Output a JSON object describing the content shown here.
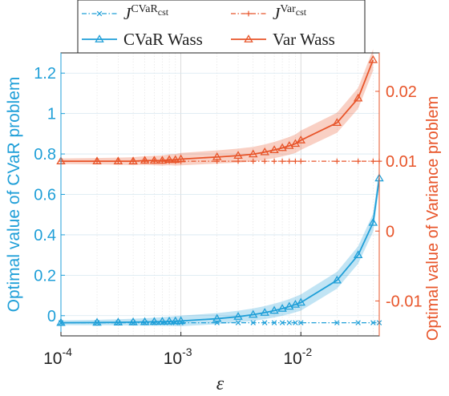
{
  "chart_data": {
    "type": "line",
    "xlabel": "ε",
    "x_scale": "log",
    "xlim": [
      0.0001,
      0.045
    ],
    "x_ticks": [
      0.0001,
      0.001,
      0.01
    ],
    "x_tick_labels": [
      {
        "base": "10",
        "exp": "-4"
      },
      {
        "base": "10",
        "exp": "-3"
      },
      {
        "base": "10",
        "exp": "-2"
      }
    ],
    "y_left": {
      "label": "Optimal value of CVaR problem",
      "lim": [
        -0.1,
        1.3
      ],
      "ticks": [
        0,
        0.2,
        0.4,
        0.6,
        0.8,
        1,
        1.2
      ],
      "tick_labels": [
        "0",
        "0.2",
        "0.4",
        "0.6",
        "0.8",
        "1",
        "1.2"
      ],
      "color": "#1f9fd8"
    },
    "y_right": {
      "label": "Optimal value of Variance problem",
      "lim": [
        -0.015,
        0.0255
      ],
      "ticks": [
        -0.01,
        0,
        0.01,
        0.02
      ],
      "tick_labels": [
        "-0.01",
        "0",
        "0.01",
        "0.02"
      ],
      "color": "#e8552a"
    },
    "grid": true,
    "legend": "top, outside",
    "legend_entries": [
      {
        "series_index": 0,
        "base": "J",
        "sup": "CVaR",
        "sub": "cst"
      },
      {
        "series_index": 1,
        "base": "J",
        "sup": "Var",
        "sub": "cst"
      },
      {
        "series_index": 2,
        "text": "CVaR Wass"
      },
      {
        "series_index": 3,
        "text": "Var Wass"
      }
    ],
    "series": [
      {
        "axis": "left",
        "color": "#1f9fd8",
        "style": "dash-dot",
        "marker": "x",
        "x": [
          0.0001,
          0.0002,
          0.0003,
          0.0004,
          0.0005,
          0.0006,
          0.0007,
          0.0008,
          0.0009,
          0.001,
          0.002,
          0.003,
          0.004,
          0.005,
          0.006,
          0.007,
          0.008,
          0.009,
          0.01,
          0.02,
          0.03,
          0.04,
          0.045
        ],
        "values": [
          -0.035,
          -0.035,
          -0.035,
          -0.035,
          -0.035,
          -0.035,
          -0.035,
          -0.035,
          -0.035,
          -0.035,
          -0.035,
          -0.035,
          -0.035,
          -0.035,
          -0.035,
          -0.035,
          -0.035,
          -0.035,
          -0.035,
          -0.035,
          -0.035,
          -0.035,
          -0.035
        ]
      },
      {
        "axis": "right",
        "color": "#e8552a",
        "style": "dash-dot",
        "marker": "+",
        "x": [
          0.0001,
          0.0002,
          0.0003,
          0.0004,
          0.0005,
          0.0006,
          0.0007,
          0.0008,
          0.0009,
          0.001,
          0.002,
          0.003,
          0.004,
          0.005,
          0.006,
          0.007,
          0.008,
          0.009,
          0.01,
          0.02,
          0.03,
          0.04,
          0.045
        ],
        "values": [
          0.01,
          0.01,
          0.01,
          0.01,
          0.01,
          0.01,
          0.01,
          0.01,
          0.01,
          0.01,
          0.01,
          0.01,
          0.01,
          0.01,
          0.01,
          0.01,
          0.01,
          0.01,
          0.01,
          0.01,
          0.01,
          0.01,
          0.01
        ]
      },
      {
        "axis": "left",
        "color": "#1f9fd8",
        "style": "solid",
        "marker": "triangle",
        "band": true,
        "x": [
          0.0001,
          0.0002,
          0.0003,
          0.0004,
          0.0005,
          0.0006,
          0.0007,
          0.0008,
          0.0009,
          0.001,
          0.002,
          0.003,
          0.004,
          0.005,
          0.006,
          0.007,
          0.008,
          0.009,
          0.01,
          0.02,
          0.03,
          0.04,
          0.045
        ],
        "values": [
          -0.035,
          -0.034,
          -0.033,
          -0.032,
          -0.031,
          -0.03,
          -0.029,
          -0.028,
          -0.027,
          -0.026,
          -0.015,
          -0.005,
          0.005,
          0.015,
          0.025,
          0.035,
          0.045,
          0.055,
          0.065,
          0.175,
          0.3,
          0.46,
          0.68
        ]
      },
      {
        "axis": "right",
        "color": "#e8552a",
        "style": "solid",
        "marker": "triangle",
        "band": true,
        "x": [
          0.0001,
          0.0002,
          0.0003,
          0.0004,
          0.0005,
          0.0006,
          0.0007,
          0.0008,
          0.0009,
          0.001,
          0.002,
          0.003,
          0.004,
          0.005,
          0.006,
          0.007,
          0.008,
          0.009,
          0.01,
          0.02,
          0.03,
          0.04
        ],
        "values": [
          0.01,
          0.01,
          0.01,
          0.01,
          0.0101,
          0.0101,
          0.0101,
          0.0102,
          0.0102,
          0.0103,
          0.0106,
          0.0108,
          0.011,
          0.0113,
          0.0116,
          0.0119,
          0.0122,
          0.0125,
          0.013,
          0.0155,
          0.019,
          0.0245
        ]
      }
    ]
  }
}
